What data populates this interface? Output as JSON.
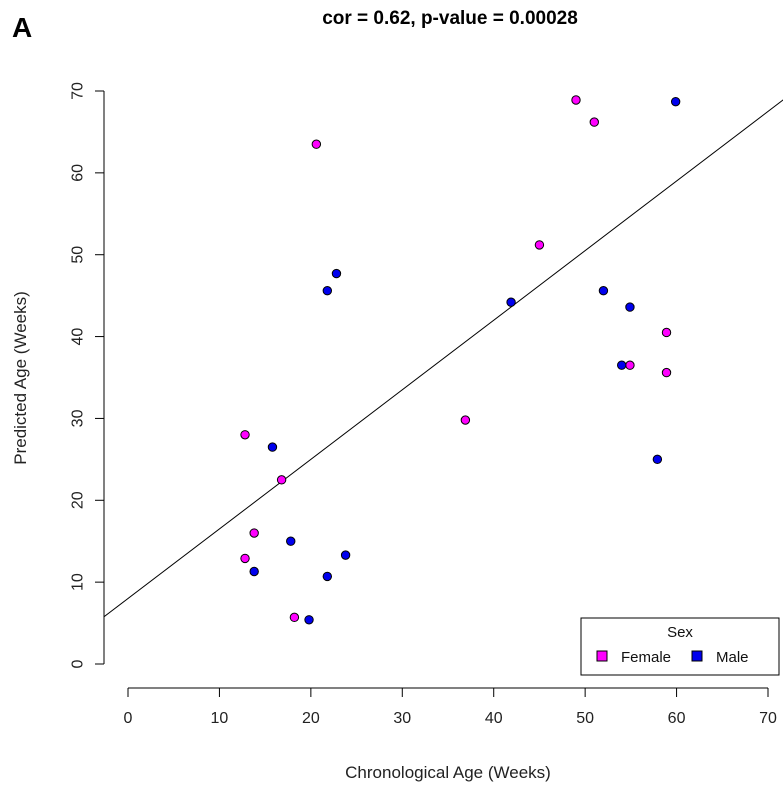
{
  "panel_label": "A",
  "chart_data": {
    "type": "scatter",
    "title": "cor = 0.62, p-value = 0.00028",
    "xlabel": "Chronological Age (Weeks)",
    "ylabel": "Predicted Age (Weeks)",
    "xlim": [
      0,
      70
    ],
    "ylim": [
      0,
      70
    ],
    "x_ticks": [
      0,
      10,
      20,
      30,
      40,
      50,
      60,
      70
    ],
    "y_ticks": [
      0,
      10,
      20,
      30,
      40,
      50,
      60,
      70
    ],
    "x_tick_labels": [
      "0",
      "10",
      "20",
      "30",
      "40",
      "50",
      "60",
      "70"
    ],
    "y_tick_labels": [
      "0",
      "10",
      "20",
      "30",
      "40",
      "50",
      "60",
      "70"
    ],
    "grid": false,
    "legend": {
      "title": "Sex",
      "position": "bottom-right"
    },
    "series": [
      {
        "name": "Female",
        "color": "#ff00ff",
        "points": [
          {
            "x": 12.8,
            "y": 28.0
          },
          {
            "x": 12.8,
            "y": 12.9
          },
          {
            "x": 13.8,
            "y": 16.0
          },
          {
            "x": 16.8,
            "y": 22.5
          },
          {
            "x": 18.2,
            "y": 5.7
          },
          {
            "x": 20.6,
            "y": 63.5
          },
          {
            "x": 36.9,
            "y": 29.8
          },
          {
            "x": 45.0,
            "y": 51.2
          },
          {
            "x": 49.0,
            "y": 68.9
          },
          {
            "x": 51.0,
            "y": 66.2
          },
          {
            "x": 54.9,
            "y": 36.5
          },
          {
            "x": 58.9,
            "y": 40.5
          },
          {
            "x": 58.9,
            "y": 35.6
          }
        ]
      },
      {
        "name": "Male",
        "color": "#0000ee",
        "points": [
          {
            "x": 13.8,
            "y": 11.3
          },
          {
            "x": 15.8,
            "y": 26.5
          },
          {
            "x": 17.8,
            "y": 15.0
          },
          {
            "x": 19.8,
            "y": 5.4
          },
          {
            "x": 21.8,
            "y": 45.6
          },
          {
            "x": 21.8,
            "y": 10.7
          },
          {
            "x": 22.8,
            "y": 47.7
          },
          {
            "x": 23.8,
            "y": 13.3
          },
          {
            "x": 41.9,
            "y": 44.2
          },
          {
            "x": 52.0,
            "y": 45.6
          },
          {
            "x": 54.0,
            "y": 36.5
          },
          {
            "x": 54.9,
            "y": 43.6
          },
          {
            "x": 57.9,
            "y": 25.0
          },
          {
            "x": 59.9,
            "y": 68.7
          }
        ]
      }
    ],
    "fit_line": {
      "intercept": 8.0,
      "slope": 0.85
    }
  }
}
